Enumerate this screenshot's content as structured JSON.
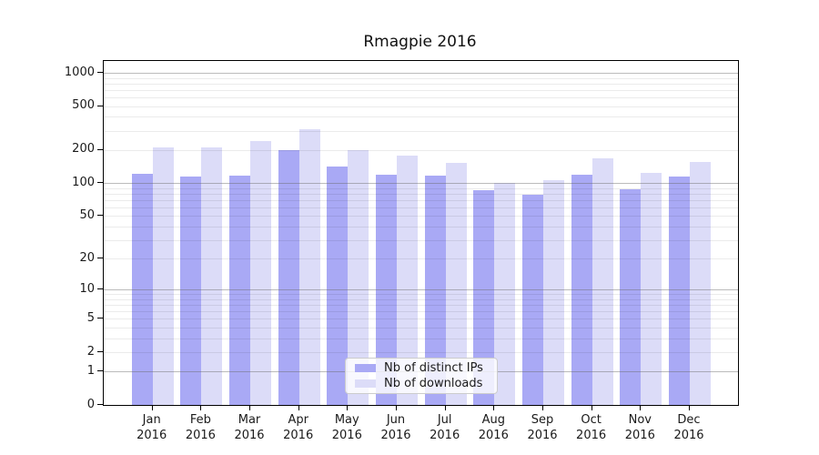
{
  "chart_data": {
    "type": "bar",
    "title": "Rmagpie 2016",
    "categories": [
      "Jan",
      "Feb",
      "Mar",
      "Apr",
      "May",
      "Jun",
      "Jul",
      "Aug",
      "Sep",
      "Oct",
      "Nov",
      "Dec"
    ],
    "x_year": "2016",
    "series": [
      {
        "name": "Nb of distinct IPs",
        "color": "#a9a9f5",
        "values": [
          121,
          115,
          118,
          200,
          141,
          119,
          118,
          87,
          79,
          120,
          88,
          115
        ]
      },
      {
        "name": "Nb of downloads",
        "color": "#dcdcf8",
        "values": [
          213,
          211,
          241,
          308,
          198,
          178,
          152,
          100,
          106,
          169,
          123,
          157
        ]
      }
    ],
    "y_axis": {
      "scale": "log10(v+1)",
      "ticks": [
        1000,
        500,
        200,
        100,
        50,
        20,
        10,
        5,
        2,
        1,
        0
      ],
      "major_gridlines": [
        1,
        10,
        100,
        1000
      ],
      "ylim_top": 1280
    },
    "grid": true,
    "legend_position": "bottom-center"
  }
}
